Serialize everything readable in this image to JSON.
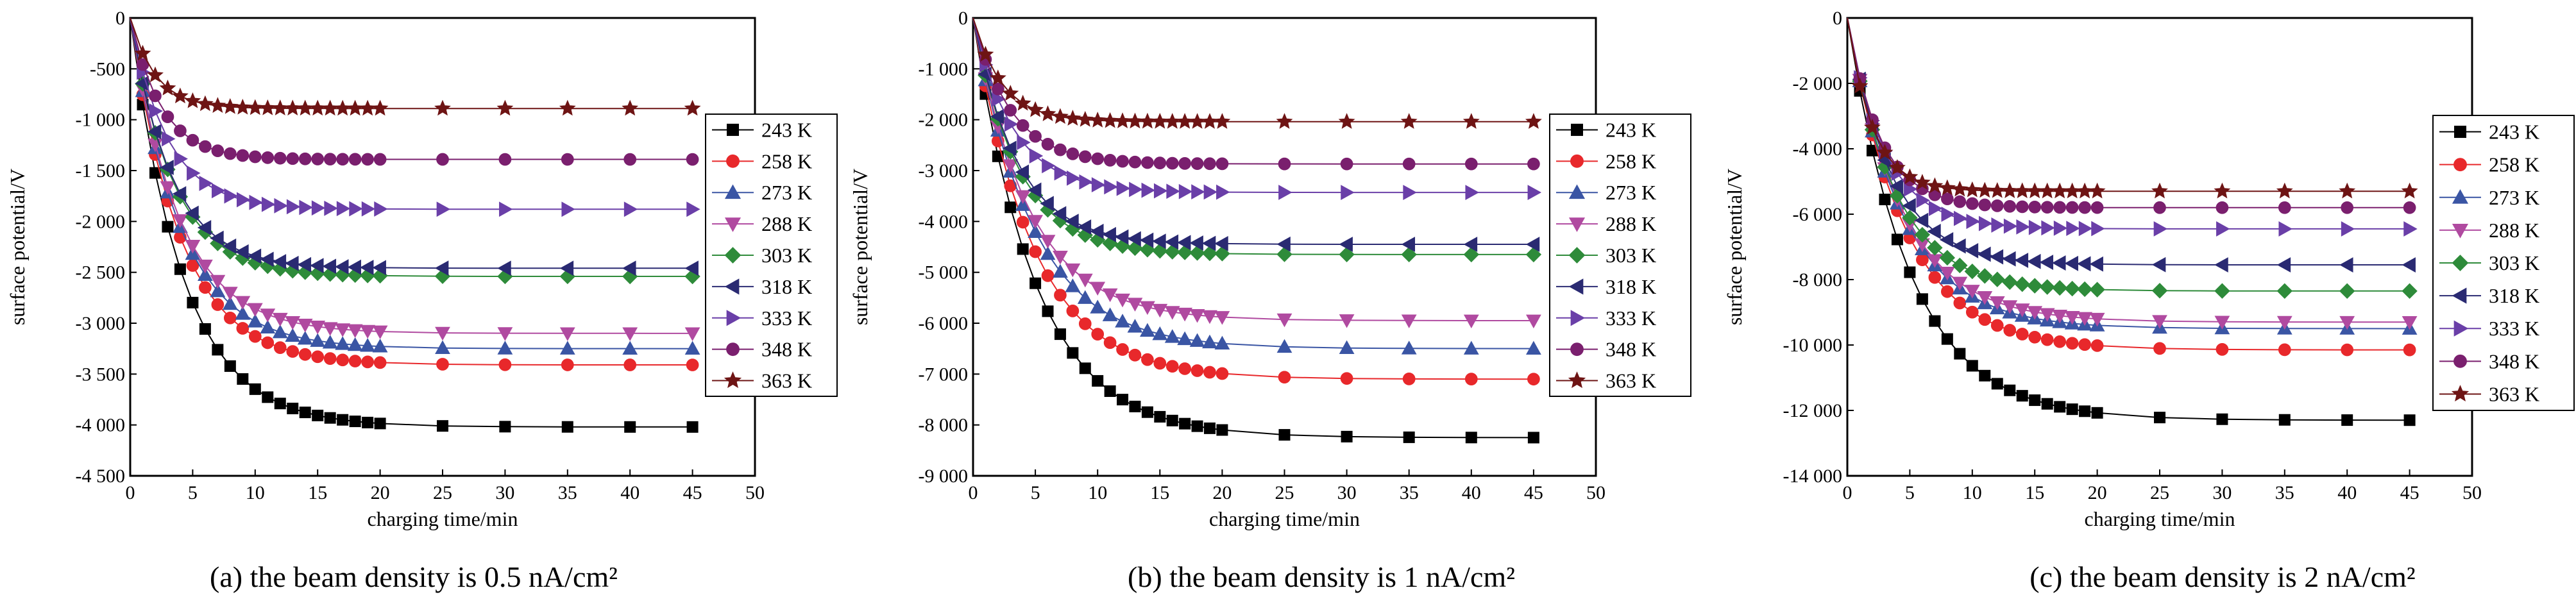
{
  "chart_data": [
    {
      "type": "line",
      "caption": "(a) the beam density is 0.5 nA/cm²",
      "xlabel": "charging time/min",
      "ylabel": "surface potential/V",
      "xlim": [
        0,
        50
      ],
      "ylim": [
        -4500,
        0
      ],
      "xticks": [
        0,
        5,
        10,
        15,
        20,
        25,
        30,
        35,
        40,
        45,
        50
      ],
      "yticks": [
        0,
        -500,
        -1000,
        -1500,
        -2000,
        -2500,
        -3000,
        -3500,
        -4000,
        -4500
      ],
      "ytick_labels": [
        "0",
        "-500",
        "-1 000",
        "-1 500",
        "-2 000",
        "-2 500",
        "-3 000",
        "-3 500",
        "-4 000",
        "-4 500"
      ],
      "legend_position": "right",
      "series": [
        {
          "name": "243 K",
          "final": -4020,
          "tau": 4.2,
          "color": "#000000",
          "marker": "square"
        },
        {
          "name": "258 K",
          "final": -3410,
          "tau": 4.0,
          "color": "#e8282b",
          "marker": "circle"
        },
        {
          "name": "273 K",
          "final": -3250,
          "tau": 4.0,
          "color": "#3a55a4",
          "marker": "triangle-up"
        },
        {
          "name": "288 K",
          "final": -3100,
          "tau": 3.9,
          "color": "#b04aa0",
          "marker": "triangle-down"
        },
        {
          "name": "303 K",
          "final": -2540,
          "tau": 3.4,
          "color": "#2e8b3a",
          "marker": "diamond"
        },
        {
          "name": "318 K",
          "final": -2460,
          "tau": 3.3,
          "color": "#2a2a72",
          "marker": "triangle-left"
        },
        {
          "name": "333 K",
          "final": -1880,
          "tau": 3.0,
          "color": "#6a3fa8",
          "marker": "triangle-right"
        },
        {
          "name": "348 K",
          "final": -1390,
          "tau": 2.5,
          "color": "#7a1f6e",
          "marker": "circle"
        },
        {
          "name": "363 K",
          "final": -890,
          "tau": 2.0,
          "color": "#6e1414",
          "marker": "star"
        }
      ]
    },
    {
      "type": "line",
      "caption": "(b) the beam density is 1 nA/cm²",
      "xlabel": "charging time/min",
      "ylabel": "surface potential/V",
      "xlim": [
        0,
        50
      ],
      "ylim": [
        -9000,
        0
      ],
      "xticks": [
        0,
        5,
        10,
        15,
        20,
        25,
        30,
        35,
        40,
        45,
        50
      ],
      "yticks": [
        0,
        -1000,
        -2000,
        -3000,
        -4000,
        -5000,
        -6000,
        -7000,
        -8000,
        -9000
      ],
      "ytick_labels": [
        "0",
        "-1 000",
        "-2 000",
        "-3 000",
        "-4 000",
        "-5 000",
        "-6 000",
        "-7 000",
        "-8 000",
        "-9 000"
      ],
      "legend_position": "right",
      "series": [
        {
          "name": "243 K",
          "final": -8250,
          "tau": 5.0,
          "color": "#000000",
          "marker": "square"
        },
        {
          "name": "258 K",
          "final": -7100,
          "tau": 4.8,
          "color": "#e8282b",
          "marker": "circle"
        },
        {
          "name": "273 K",
          "final": -6500,
          "tau": 4.8,
          "color": "#3a55a4",
          "marker": "triangle-up"
        },
        {
          "name": "288 K",
          "final": -5950,
          "tau": 4.5,
          "color": "#b04aa0",
          "marker": "triangle-down"
        },
        {
          "name": "303 K",
          "final": -4650,
          "tau": 3.6,
          "color": "#2e8b3a",
          "marker": "diamond"
        },
        {
          "name": "318 K",
          "final": -4450,
          "tau": 3.5,
          "color": "#2a2a72",
          "marker": "triangle-left"
        },
        {
          "name": "333 K",
          "final": -3430,
          "tau": 3.2,
          "color": "#6a3fa8",
          "marker": "triangle-right"
        },
        {
          "name": "348 K",
          "final": -2870,
          "tau": 3.0,
          "color": "#7a1f6e",
          "marker": "circle"
        },
        {
          "name": "363 K",
          "final": -2040,
          "tau": 2.3,
          "color": "#6e1414",
          "marker": "star"
        }
      ]
    },
    {
      "type": "line",
      "caption": "(c) the beam density is 2 nA/cm²",
      "xlabel": "charging time/min",
      "ylabel": "surface potential/V",
      "xlim": [
        0,
        50
      ],
      "ylim": [
        -14000,
        0
      ],
      "xticks": [
        0,
        5,
        10,
        15,
        20,
        25,
        30,
        35,
        40,
        45,
        50
      ],
      "yticks": [
        0,
        -2000,
        -4000,
        -6000,
        -8000,
        -10000,
        -12000,
        -14000
      ],
      "ytick_labels": [
        "0",
        "-2 000",
        "-4 000",
        "-6 000",
        "-8 000",
        "-10 000",
        "-12 000",
        "-14 000"
      ],
      "legend_position": "right",
      "series": [
        {
          "name": "243 K",
          "final": -12300,
          "tau": 5.0,
          "color": "#000000",
          "marker": "square"
        },
        {
          "name": "258 K",
          "final": -10150,
          "tau": 4.6,
          "color": "#e8282b",
          "marker": "circle"
        },
        {
          "name": "273 K",
          "final": -9500,
          "tau": 4.4,
          "color": "#3a55a4",
          "marker": "triangle-up"
        },
        {
          "name": "288 K",
          "final": -9300,
          "tau": 4.4,
          "color": "#b04aa0",
          "marker": "triangle-down"
        },
        {
          "name": "303 K",
          "final": -8350,
          "tau": 3.8,
          "color": "#2e8b3a",
          "marker": "diamond"
        },
        {
          "name": "318 K",
          "final": -7550,
          "tau": 3.5,
          "color": "#2a2a72",
          "marker": "triangle-left"
        },
        {
          "name": "333 K",
          "final": -6450,
          "tau": 3.0,
          "color": "#6a3fa8",
          "marker": "triangle-right"
        },
        {
          "name": "348 K",
          "final": -5800,
          "tau": 2.6,
          "color": "#7a1f6e",
          "marker": "circle"
        },
        {
          "name": "363 K",
          "final": -5300,
          "tau": 2.0,
          "color": "#6e1414",
          "marker": "star"
        }
      ]
    }
  ],
  "x_samples": [
    0,
    1,
    2,
    3,
    4,
    5,
    6,
    7,
    8,
    9,
    10,
    11,
    12,
    13,
    14,
    15,
    16,
    17,
    18,
    19,
    20,
    25,
    30,
    35,
    40,
    45
  ]
}
